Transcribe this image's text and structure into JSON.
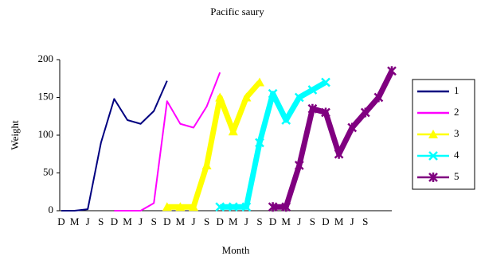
{
  "chart_data": {
    "type": "line",
    "title": "Pacific saury",
    "x_label": "Month",
    "y_label": "Weight",
    "categories": [
      "D",
      "M",
      "J",
      "S",
      "D",
      "M",
      "J",
      "S",
      "D",
      "M",
      "J",
      "S",
      "D",
      "M",
      "J",
      "S",
      "D",
      "M",
      "J",
      "S",
      "D",
      "M",
      "J",
      "S",
      null,
      null
    ],
    "ylim": [
      0,
      200
    ],
    "yticks": [
      0,
      50,
      100,
      150,
      200
    ],
    "legend": "right",
    "series": [
      {
        "name": "1",
        "color": "#000080",
        "marker": "none",
        "values": [
          0,
          0,
          2,
          90,
          148,
          120,
          115,
          132,
          172,
          null,
          null,
          null,
          null,
          null,
          null,
          null,
          null,
          null,
          null,
          null,
          null,
          null,
          null,
          null,
          null,
          null
        ]
      },
      {
        "name": "2",
        "color": "#ff00ff",
        "marker": "none",
        "values": [
          null,
          null,
          null,
          null,
          0,
          0,
          0,
          10,
          145,
          115,
          110,
          138,
          183,
          null,
          null,
          null,
          null,
          null,
          null,
          null,
          null,
          null,
          null,
          null,
          null,
          null
        ]
      },
      {
        "name": "3",
        "color": "#ffff00",
        "marker": "triangle",
        "values": [
          null,
          null,
          null,
          null,
          null,
          null,
          null,
          null,
          5,
          5,
          5,
          60,
          150,
          105,
          150,
          170,
          null,
          null,
          null,
          null,
          null,
          null,
          null,
          null,
          null,
          null
        ]
      },
      {
        "name": "4",
        "color": "#00ffff",
        "marker": "x",
        "values": [
          null,
          null,
          null,
          null,
          null,
          null,
          null,
          null,
          null,
          null,
          null,
          null,
          5,
          5,
          5,
          90,
          155,
          120,
          150,
          160,
          170,
          null,
          null,
          null,
          null,
          null
        ]
      },
      {
        "name": "5",
        "color": "#800080",
        "marker": "star",
        "values": [
          null,
          null,
          null,
          null,
          null,
          null,
          null,
          null,
          null,
          null,
          null,
          null,
          null,
          null,
          null,
          null,
          5,
          5,
          60,
          135,
          130,
          75,
          110,
          130,
          150,
          185
        ]
      }
    ]
  }
}
